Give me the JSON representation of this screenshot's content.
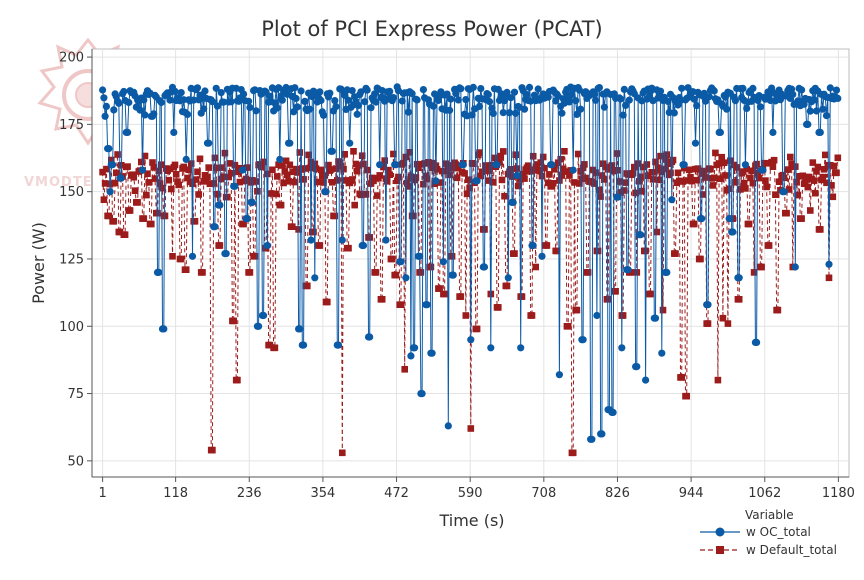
{
  "chart_data": {
    "type": "line",
    "title": "Plot of PCI Express Power (PCAT)",
    "xlabel": "Time (s)",
    "ylabel": "Power (W)",
    "xlim": [
      -16,
      1197
    ],
    "ylim": [
      44,
      203
    ],
    "x_ticks": [
      1,
      118,
      236,
      354,
      472,
      590,
      708,
      826,
      944,
      1062,
      1180
    ],
    "y_ticks": [
      50,
      75,
      100,
      125,
      150,
      175,
      200
    ],
    "grid": true,
    "legend": {
      "title": "Variable",
      "placement": "bottom-right"
    },
    "series": [
      {
        "name": "w OC_total",
        "color": "#0b5aa6",
        "marker": "circle",
        "line_style": "solid",
        "x_range": [
          1,
          1180
        ],
        "baseline_typical": 186,
        "baseline_range": [
          178,
          189
        ],
        "dips": [
          [
            5,
            178
          ],
          [
            10,
            166
          ],
          [
            12,
            150
          ],
          [
            16,
            160
          ],
          [
            30,
            155
          ],
          [
            40,
            172
          ],
          [
            65,
            158
          ],
          [
            80,
            178
          ],
          [
            90,
            120
          ],
          [
            98,
            99
          ],
          [
            115,
            172
          ],
          [
            135,
            162
          ],
          [
            145,
            126
          ],
          [
            170,
            168
          ],
          [
            180,
            137
          ],
          [
            188,
            145
          ],
          [
            198,
            127
          ],
          [
            212,
            152
          ],
          [
            225,
            158
          ],
          [
            232,
            140
          ],
          [
            240,
            146
          ],
          [
            250,
            100
          ],
          [
            258,
            104
          ],
          [
            265,
            130
          ],
          [
            285,
            162
          ],
          [
            300,
            168
          ],
          [
            316,
            99
          ],
          [
            322,
            93
          ],
          [
            335,
            132
          ],
          [
            341,
            118
          ],
          [
            358,
            150
          ],
          [
            368,
            165
          ],
          [
            378,
            93
          ],
          [
            385,
            132
          ],
          [
            397,
            168
          ],
          [
            418,
            130
          ],
          [
            428,
            96
          ],
          [
            445,
            160
          ],
          [
            455,
            132
          ],
          [
            470,
            160
          ],
          [
            478,
            124
          ],
          [
            487,
            118
          ],
          [
            495,
            89
          ],
          [
            500,
            92
          ],
          [
            508,
            126
          ],
          [
            512,
            75
          ],
          [
            520,
            108
          ],
          [
            528,
            90
          ],
          [
            535,
            154
          ],
          [
            547,
            124
          ],
          [
            555,
            63
          ],
          [
            562,
            119
          ],
          [
            578,
            160
          ],
          [
            591,
            95
          ],
          [
            600,
            154
          ],
          [
            612,
            122
          ],
          [
            623,
            92
          ],
          [
            632,
            160
          ],
          [
            651,
            118
          ],
          [
            658,
            146
          ],
          [
            665,
            156
          ],
          [
            671,
            92
          ],
          [
            690,
            130
          ],
          [
            705,
            126
          ],
          [
            720,
            160
          ],
          [
            733,
            82
          ],
          [
            755,
            158
          ],
          [
            770,
            95
          ],
          [
            784,
            58
          ],
          [
            793,
            104
          ],
          [
            800,
            60
          ],
          [
            812,
            69
          ],
          [
            818,
            68
          ],
          [
            826,
            148
          ],
          [
            833,
            92
          ],
          [
            842,
            121
          ],
          [
            856,
            85
          ],
          [
            862,
            134
          ],
          [
            871,
            80
          ],
          [
            886,
            103
          ],
          [
            897,
            90
          ],
          [
            904,
            120
          ],
          [
            913,
            147
          ],
          [
            932,
            160
          ],
          [
            951,
            168
          ],
          [
            960,
            140
          ],
          [
            970,
            108
          ],
          [
            990,
            172
          ],
          [
            1005,
            140
          ],
          [
            1010,
            135
          ],
          [
            1020,
            118
          ],
          [
            1031,
            160
          ],
          [
            1048,
            94
          ],
          [
            1058,
            158
          ],
          [
            1075,
            172
          ],
          [
            1092,
            150
          ],
          [
            1111,
            122
          ],
          [
            1130,
            175
          ],
          [
            1150,
            172
          ],
          [
            1165,
            123
          ]
        ]
      },
      {
        "name": "w Default_total",
        "color": "#9c1b1b",
        "marker": "square",
        "line_style": "dashed",
        "x_range": [
          1,
          1180
        ],
        "baseline_typical": 157,
        "baseline_range": [
          148,
          165
        ],
        "dips": [
          [
            3,
            147
          ],
          [
            10,
            141
          ],
          [
            18,
            139
          ],
          [
            28,
            135
          ],
          [
            36,
            134
          ],
          [
            44,
            143
          ],
          [
            56,
            146
          ],
          [
            66,
            140
          ],
          [
            78,
            138
          ],
          [
            88,
            142
          ],
          [
            100,
            141
          ],
          [
            113,
            126
          ],
          [
            126,
            125
          ],
          [
            134,
            121
          ],
          [
            148,
            139
          ],
          [
            160,
            120
          ],
          [
            176,
            54
          ],
          [
            188,
            130
          ],
          [
            200,
            148
          ],
          [
            210,
            102
          ],
          [
            216,
            80
          ],
          [
            226,
            138
          ],
          [
            236,
            120
          ],
          [
            244,
            126
          ],
          [
            262,
            129
          ],
          [
            268,
            93
          ],
          [
            276,
            92
          ],
          [
            286,
            145
          ],
          [
            304,
            137
          ],
          [
            315,
            136
          ],
          [
            328,
            115
          ],
          [
            338,
            135
          ],
          [
            348,
            130
          ],
          [
            360,
            109
          ],
          [
            372,
            141
          ],
          [
            385,
            53
          ],
          [
            394,
            129
          ],
          [
            405,
            145
          ],
          [
            428,
            133
          ],
          [
            438,
            120
          ],
          [
            448,
            110
          ],
          [
            464,
            125
          ],
          [
            470,
            119
          ],
          [
            478,
            108
          ],
          [
            485,
            84
          ],
          [
            498,
            141
          ],
          [
            510,
            120
          ],
          [
            526,
            122
          ],
          [
            540,
            114
          ],
          [
            548,
            112
          ],
          [
            560,
            126
          ],
          [
            574,
            111
          ],
          [
            583,
            104
          ],
          [
            591,
            62
          ],
          [
            600,
            99
          ],
          [
            612,
            136
          ],
          [
            623,
            112
          ],
          [
            634,
            107
          ],
          [
            648,
            115
          ],
          [
            660,
            127
          ],
          [
            672,
            111
          ],
          [
            688,
            104
          ],
          [
            695,
            122
          ],
          [
            712,
            130
          ],
          [
            728,
            128
          ],
          [
            746,
            100
          ],
          [
            754,
            53
          ],
          [
            760,
            106
          ],
          [
            778,
            120
          ],
          [
            794,
            128
          ],
          [
            810,
            110
          ],
          [
            822,
            113
          ],
          [
            834,
            104
          ],
          [
            846,
            120
          ],
          [
            857,
            120
          ],
          [
            870,
            128
          ],
          [
            878,
            112
          ],
          [
            889,
            135
          ],
          [
            899,
            106
          ],
          [
            918,
            127
          ],
          [
            928,
            81
          ],
          [
            936,
            74
          ],
          [
            948,
            138
          ],
          [
            958,
            125
          ],
          [
            970,
            101
          ],
          [
            987,
            80
          ],
          [
            995,
            103
          ],
          [
            1003,
            101
          ],
          [
            1010,
            140
          ],
          [
            1020,
            110
          ],
          [
            1036,
            138
          ],
          [
            1045,
            120
          ],
          [
            1056,
            122
          ],
          [
            1068,
            130
          ],
          [
            1082,
            106
          ],
          [
            1096,
            142
          ],
          [
            1107,
            122
          ],
          [
            1120,
            140
          ],
          [
            1135,
            143
          ],
          [
            1150,
            136
          ],
          [
            1165,
            118
          ],
          [
            1176,
            157
          ]
        ]
      }
    ]
  },
  "watermark": {
    "text": "VMODTECH.COM"
  }
}
